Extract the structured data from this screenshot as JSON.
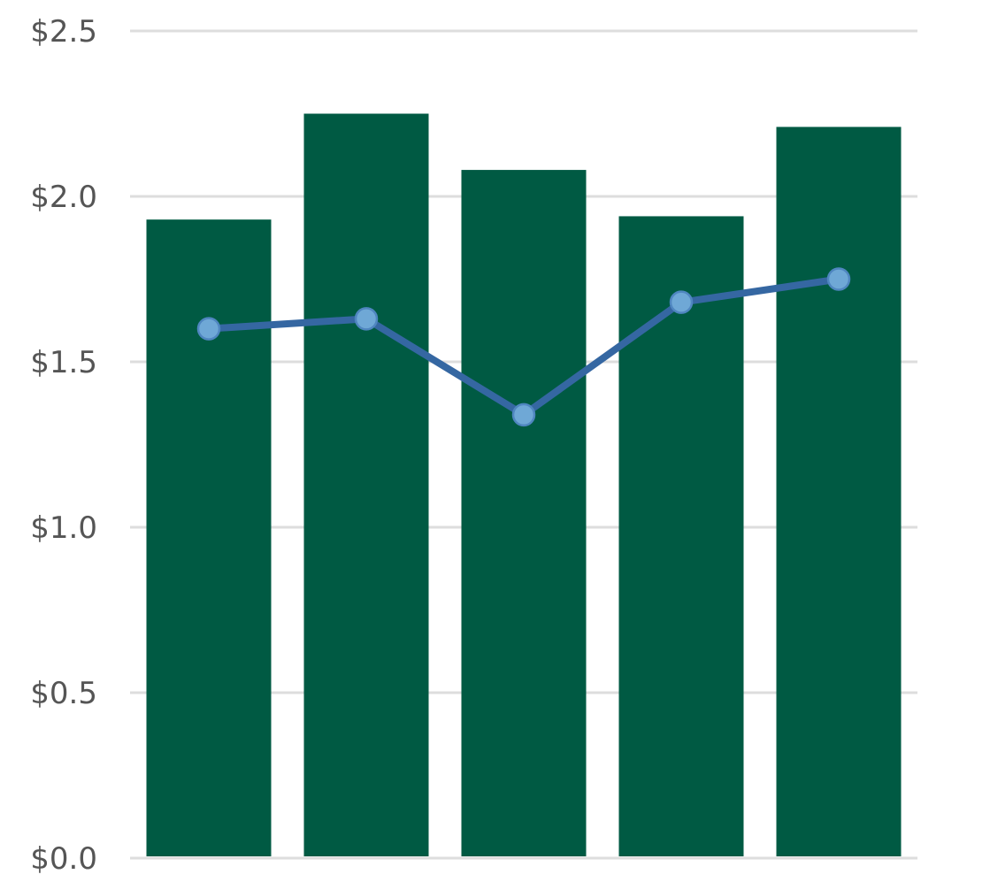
{
  "chart_data": {
    "type": "bar",
    "title": "",
    "xlabel": "",
    "ylabel": "",
    "ylim": [
      0,
      2.5
    ],
    "yticks": [
      0,
      0.5,
      1.0,
      1.5,
      2.0,
      2.5
    ],
    "ytick_labels": [
      "$0.0",
      "$0.5",
      "$1.0",
      "$1.5",
      "$2.0",
      "$2.5"
    ],
    "grid": true,
    "categories": [
      "1",
      "2",
      "3",
      "4",
      "5"
    ],
    "series": [
      {
        "type": "bar",
        "values": [
          1.93,
          2.25,
          2.08,
          1.94,
          2.21
        ],
        "color": "#005a43"
      },
      {
        "type": "line",
        "values": [
          1.6,
          1.63,
          1.34,
          1.68,
          1.75
        ],
        "color": "#3567a2",
        "marker_color": "#6fa8d6"
      }
    ],
    "category_labels_visible": false,
    "legend": "none"
  }
}
